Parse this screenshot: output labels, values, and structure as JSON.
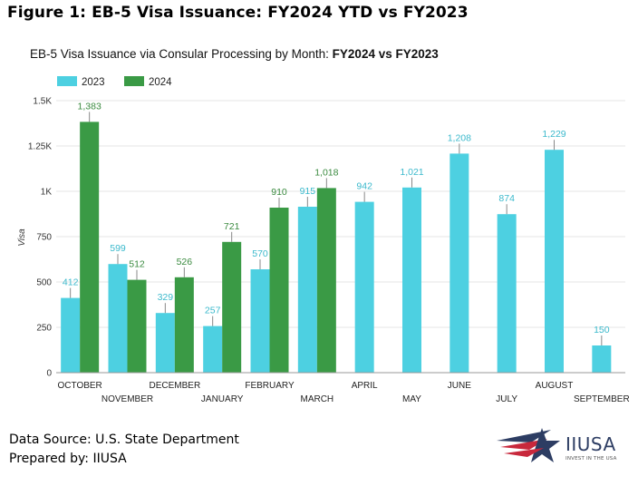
{
  "figure_title": "Figure 1: EB-5 Visa Issuance: FY2024 YTD vs FY2023",
  "footer": {
    "source": "Data Source: U.S. State Department",
    "prepared": "Prepared by: IIUSA"
  },
  "logo": {
    "name": "IIUSA",
    "tagline": "INVEST IN THE USA"
  },
  "colors": {
    "2023": "#4dd0e1",
    "2024": "#3a9a45",
    "grid": "#e6e6e6",
    "axis": "#999999"
  },
  "chart_data": {
    "type": "bar",
    "title_plain": "EB-5 Visa Issuance via Consular Processing by Month: ",
    "title_bold": "FY2024 vs FY2023",
    "ylabel": "Visa",
    "ylim": [
      0,
      1500
    ],
    "yticks": [
      0,
      250,
      500,
      750,
      1000,
      1250,
      1500
    ],
    "ytick_labels": [
      "0",
      "250",
      "500",
      "750",
      "1K",
      "1.25K",
      "1.5K"
    ],
    "legend_position": "top-left",
    "categories": [
      "OCTOBER",
      "NOVEMBER",
      "DECEMBER",
      "JANUARY",
      "FEBRUARY",
      "MARCH",
      "APRIL",
      "MAY",
      "JUNE",
      "JULY",
      "AUGUST",
      "SEPTEMBER"
    ],
    "series": [
      {
        "name": "2023",
        "values": [
          412,
          599,
          329,
          257,
          570,
          915,
          942,
          1021,
          1208,
          874,
          1229,
          150
        ],
        "labels": [
          "412",
          "599",
          "329",
          "257",
          "570",
          "915",
          "942",
          "1,021",
          "1,208",
          "874",
          "1,229",
          "150"
        ]
      },
      {
        "name": "2024",
        "values": [
          1383,
          512,
          526,
          721,
          910,
          1018,
          null,
          null,
          null,
          null,
          null,
          null
        ],
        "labels": [
          "1,383",
          "512",
          "526",
          "721",
          "910",
          "1,018",
          "",
          "",
          "",
          "",
          "",
          ""
        ]
      }
    ]
  }
}
